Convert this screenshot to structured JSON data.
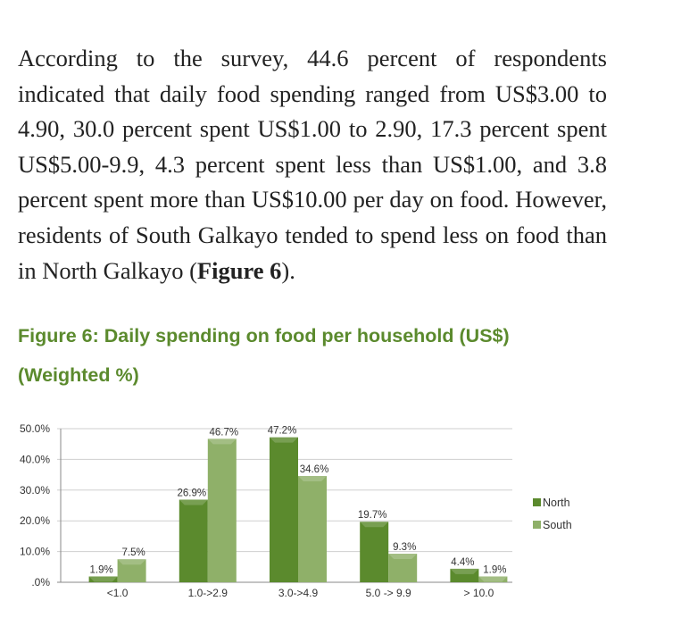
{
  "paragraph": {
    "text": "According to the survey, 44.6 percent of respondents indicated that daily food spending ranged from US$3.00 to 4.90, 30.0 percent spent US$1.00 to 2.90, 17.3 percent spent US$5.00-9.9, 4.3 percent spent less than US$1.00, and 3.8 percent spent more than US$10.00 per day on food. However, residents of South Galkayo tended to spend less on food than in North Galkayo (",
    "ref": "Figure 6",
    "end": ")."
  },
  "figure": {
    "title_line1": "Figure 6: Daily spending on food per household (US$)",
    "title_line2": "(Weighted %)"
  },
  "chart_data": {
    "type": "bar",
    "categories": [
      "<1.0",
      "1.0->2.9",
      "3.0->4.9",
      "5.0 -> 9.9",
      "> 10.0"
    ],
    "series": [
      {
        "name": "North",
        "values": [
          1.9,
          26.9,
          47.2,
          19.7,
          4.4
        ],
        "labels": [
          "1.9%",
          "26.9%",
          "47.2%",
          "19.7%",
          "4.4%"
        ],
        "color": "#5b8a2d"
      },
      {
        "name": "South",
        "values": [
          7.5,
          46.7,
          34.6,
          9.3,
          1.9
        ],
        "labels": [
          "7.5%",
          "46.7%",
          "34.6%",
          "9.3%",
          "1.9%"
        ],
        "color": "#8fb069"
      }
    ],
    "yticks": [
      0,
      10,
      20,
      30,
      40,
      50
    ],
    "ytick_labels": [
      ".0%",
      "10.0%",
      "20.0%",
      "30.0%",
      "40.0%",
      "50.0%"
    ],
    "ylim": [
      0,
      50
    ],
    "grid": true,
    "legend": "right"
  }
}
